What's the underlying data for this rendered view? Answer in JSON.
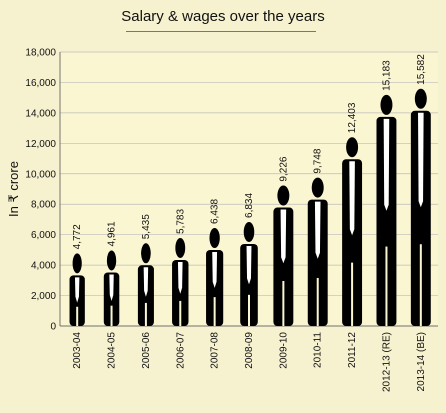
{
  "chart_data": {
    "type": "bar",
    "title": "Salary & wages over the years",
    "ylabel": "In ₹ crore",
    "xlabel": "",
    "ylim": [
      0,
      18000
    ],
    "yticks": [
      0,
      2000,
      4000,
      6000,
      8000,
      10000,
      12000,
      14000,
      16000,
      18000
    ],
    "ytick_labels": [
      "0",
      "2,000",
      "4,000",
      "6,000",
      "8,000",
      "10,000",
      "12,000",
      "14,000",
      "16,000",
      "18,000"
    ],
    "grid": true,
    "categories": [
      "2003-04",
      "2004-05",
      "2005-06",
      "2006-07",
      "2007-08",
      "2008-09",
      "2009-10",
      "2010-11",
      "2011-12",
      "2012-13 (RE)",
      "2013-14 (BE)"
    ],
    "values": [
      4772,
      4961,
      5435,
      5783,
      6438,
      6834,
      9226,
      9748,
      12403,
      15183,
      15582
    ],
    "value_labels": [
      "4,772",
      "4,961",
      "5,435",
      "5,783",
      "6,438",
      "6,834",
      "9,226",
      "9,748",
      "12,403",
      "15,183",
      "15,582"
    ],
    "colors": {
      "background": "#f6f1cf",
      "plot_bg": "#fbf6d2",
      "bars": "#000000",
      "shirt": "#ffffff",
      "grid": "#bbbbbb"
    }
  }
}
